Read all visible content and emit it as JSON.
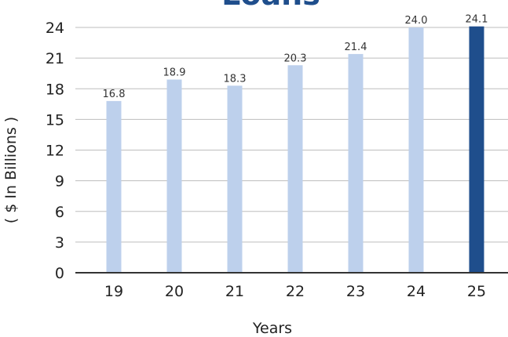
{
  "chart_data": {
    "type": "bar",
    "title": "Loans",
    "xlabel": "Years",
    "ylabel": "( $ In Billions )",
    "categories": [
      "19",
      "20",
      "21",
      "22",
      "23",
      "24",
      "25"
    ],
    "values": [
      16.8,
      18.9,
      18.3,
      20.3,
      21.4,
      24.0,
      24.1
    ],
    "data_labels": [
      "16.8",
      "18.9",
      "18.3",
      "20.3",
      "21.4",
      "24.0",
      "24.1"
    ],
    "y_ticks": [
      0,
      3,
      6,
      9,
      12,
      15,
      18,
      21,
      24
    ],
    "ylim": [
      0,
      24
    ],
    "grid": true,
    "legend": "none",
    "highlight_index": 6,
    "colors": {
      "bar": "#bdd0ec",
      "highlight": "#1f4e8c",
      "title": "#1f4e8c",
      "grid": "#bdbdbd",
      "axis": "#333333",
      "text": "#222222"
    }
  }
}
